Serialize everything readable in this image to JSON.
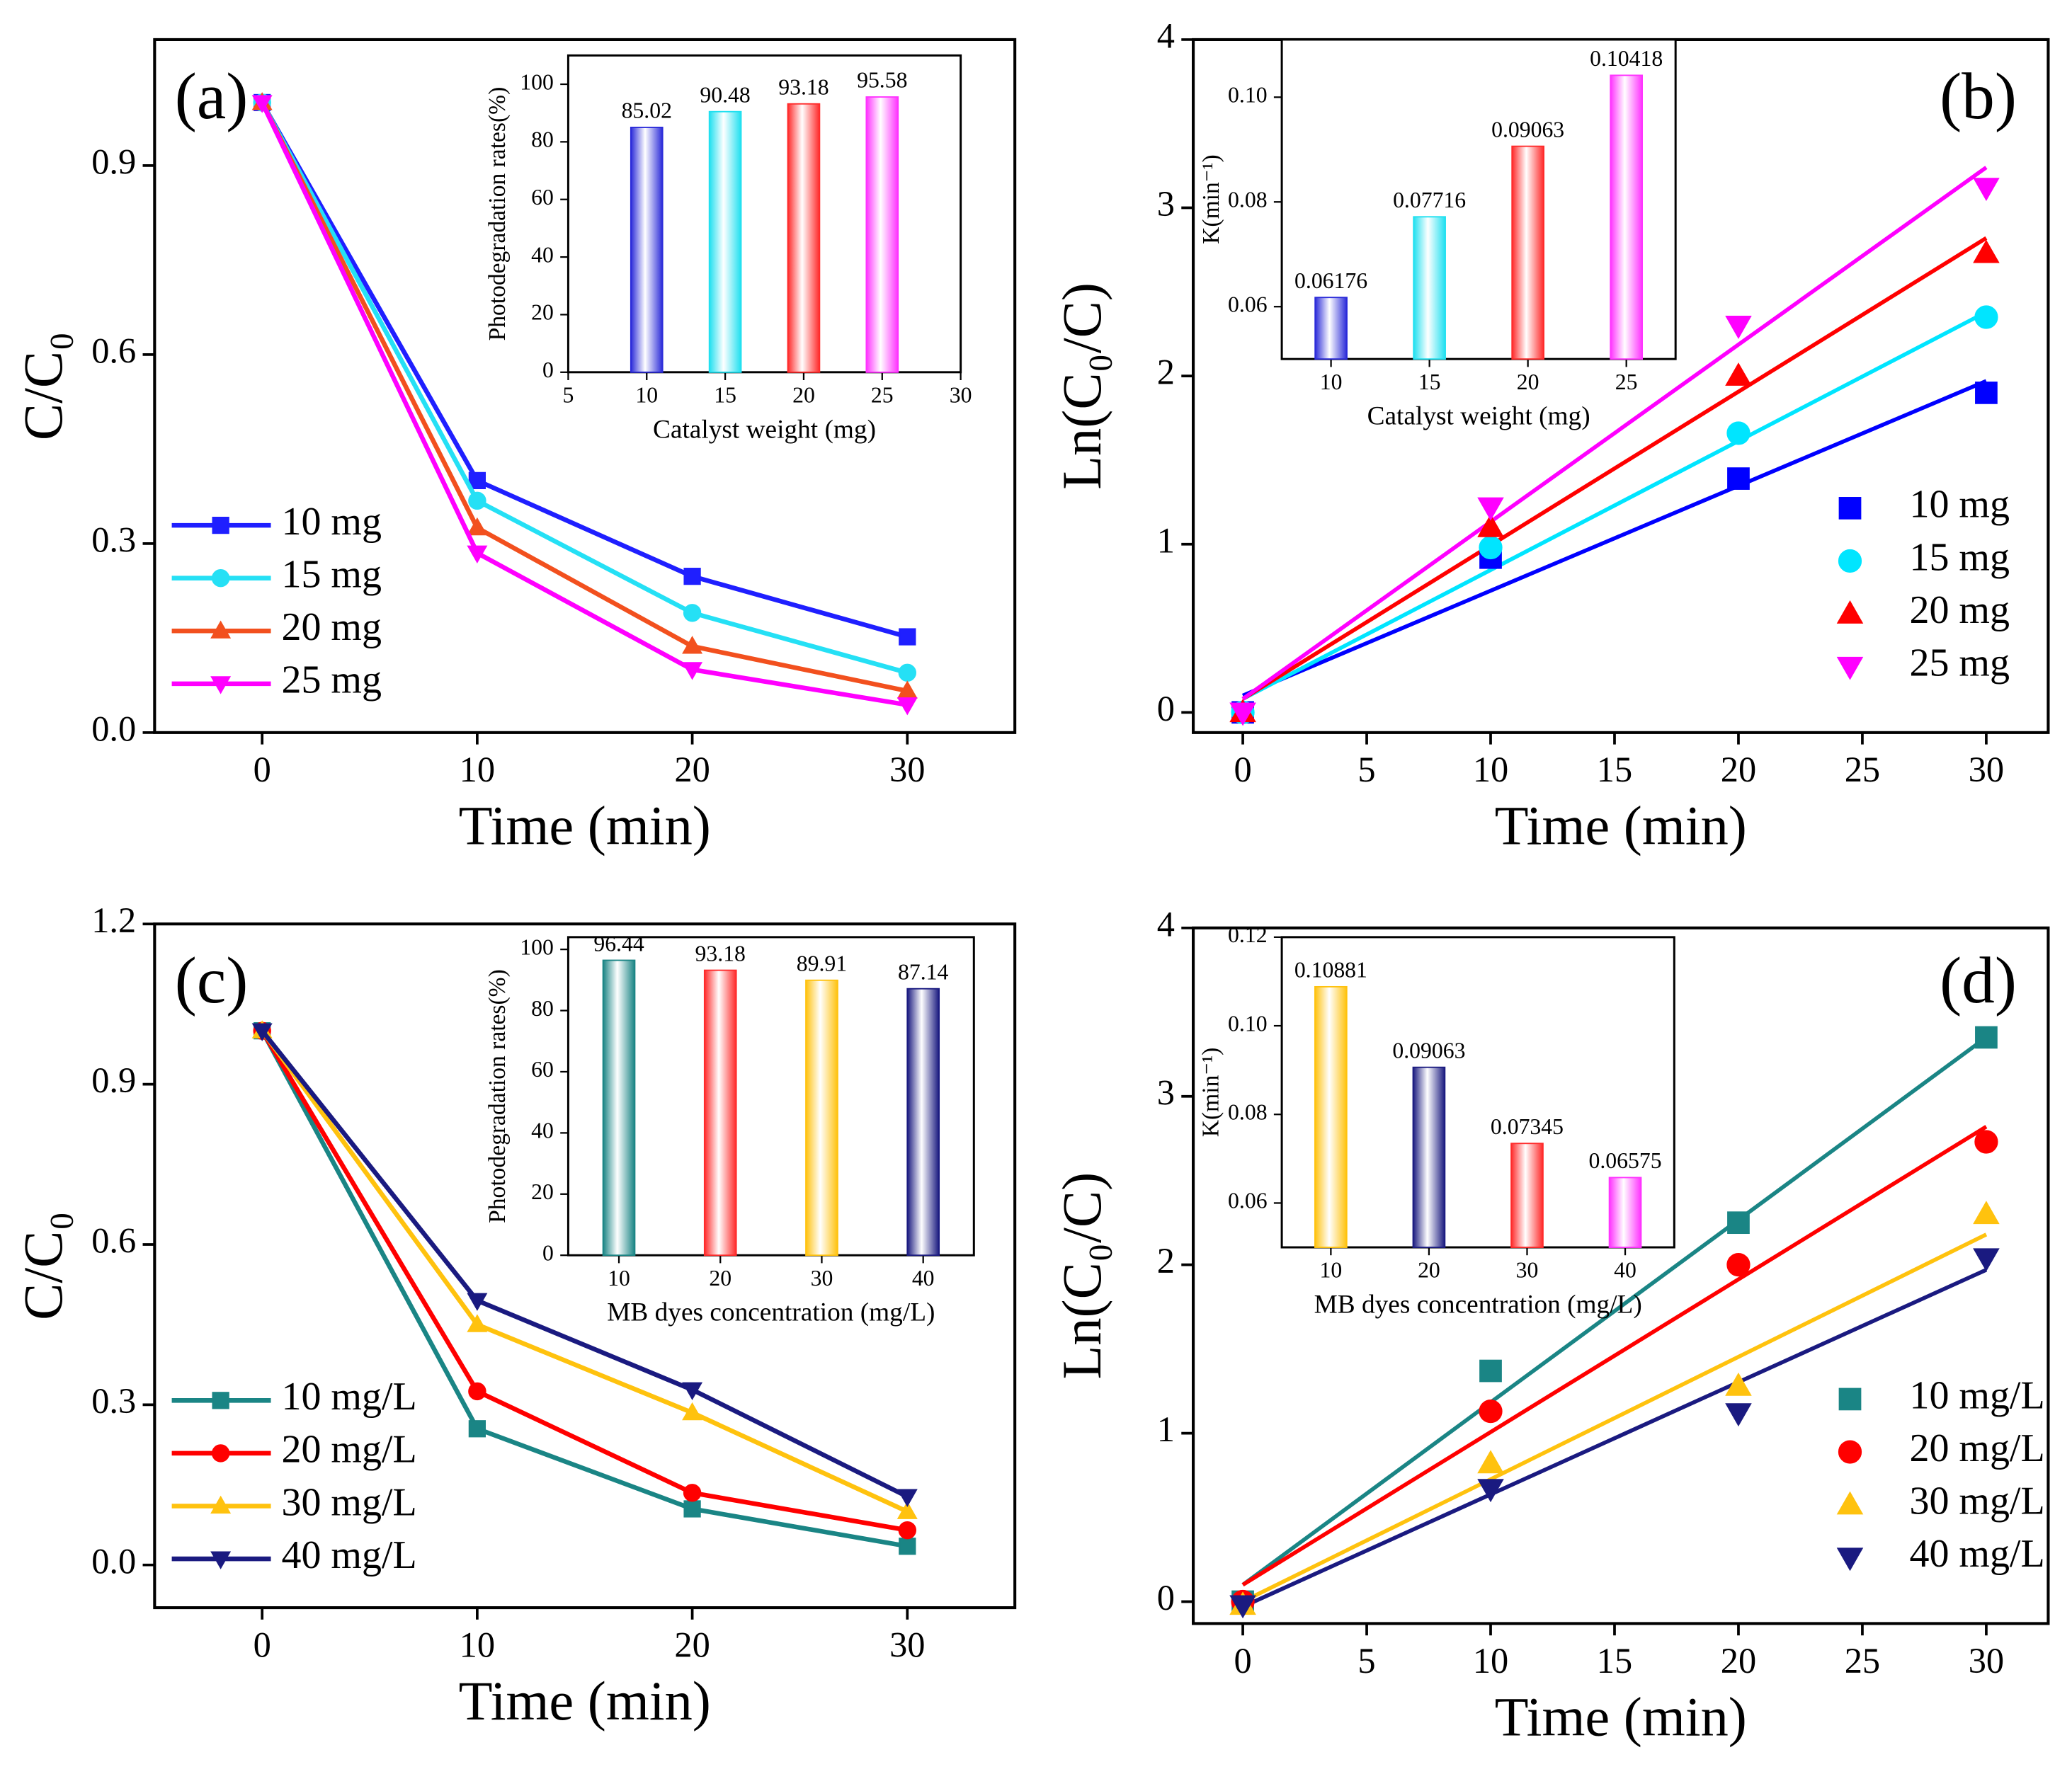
{
  "chart_data": [
    {
      "type": "line",
      "panel_label": "(a)",
      "x_label": "Time (min)",
      "y_label": "C/C₀",
      "x": [
        0,
        10,
        20,
        30
      ],
      "xlim": [
        -5,
        35
      ],
      "xticks": [
        0,
        10,
        20,
        30
      ],
      "ylim": [
        0,
        1.1
      ],
      "yticks": [
        {
          "value": 0,
          "label": "0.0"
        },
        0.3,
        0.6,
        0.9
      ],
      "legend": "lower left",
      "series": [
        {
          "name": "10 mg",
          "color": "#1f1fff",
          "marker": "square",
          "values": [
            1,
            0.4,
            0.248,
            0.152
          ]
        },
        {
          "name": "15 mg",
          "color": "#25e0f5",
          "marker": "circle",
          "values": [
            1,
            0.368,
            0.19,
            0.095
          ]
        },
        {
          "name": "20 mg",
          "color": "#f2501e",
          "marker": "triangle-up",
          "values": [
            1,
            0.325,
            0.137,
            0.066
          ]
        },
        {
          "name": "25 mg",
          "color": "#ff00ff",
          "marker": "triangle-down",
          "values": [
            1,
            0.285,
            0.1,
            0.044
          ]
        }
      ]
    },
    {
      "type": "bar",
      "x_label": "Catalyst weight (mg)",
      "y_label": "Photodegradation rates(%)",
      "x": [
        10,
        15,
        20,
        25
      ],
      "xlim": [
        5,
        30
      ],
      "xticks": [
        5,
        10,
        15,
        20,
        25,
        30
      ],
      "values": [
        85.02,
        90.48,
        93.18,
        95.58
      ],
      "colors": [
        "#2b2bd9",
        "#20e0f0",
        "#ff2a2a",
        "#ff33ff"
      ],
      "ylim": [
        0,
        110
      ],
      "yticks": [
        0,
        20,
        40,
        60,
        80,
        100
      ]
    },
    {
      "type": "scatter",
      "panel_label": "(b)",
      "x_label": "Time (min)",
      "y_label": "Ln(C₀/C)",
      "x": [
        0,
        10,
        20,
        30
      ],
      "xlim": [
        -2,
        32.5
      ],
      "xticks": [
        0,
        5,
        10,
        15,
        20,
        25,
        30
      ],
      "ylim": [
        -0.12,
        4
      ],
      "yticks": [
        0,
        1,
        2,
        3,
        4
      ],
      "legend": "lower right",
      "series": [
        {
          "name": "10 mg",
          "color": "#0000ff",
          "marker": "square",
          "values": [
            0,
            0.92,
            1.39,
            1.9
          ],
          "fit": [
            0.1,
            1.97
          ]
        },
        {
          "name": "15 mg",
          "color": "#00e5ff",
          "marker": "circle",
          "values": [
            0,
            0.98,
            1.66,
            2.35
          ],
          "fit": [
            0.08,
            2.38
          ]
        },
        {
          "name": "20 mg",
          "color": "#ff0000",
          "marker": "triangle-up",
          "values": [
            0,
            1.1,
            2.0,
            2.73
          ],
          "fit": [
            0.08,
            2.82
          ]
        },
        {
          "name": "25 mg",
          "color": "#ff00ff",
          "marker": "triangle-down",
          "values": [
            0,
            1.22,
            2.3,
            3.12
          ],
          "fit": [
            0.08,
            3.24
          ]
        }
      ]
    },
    {
      "type": "bar",
      "x_label": "Catalyst weight (mg)",
      "y_label": "K(min⁻¹)",
      "categories": [
        "10",
        "15",
        "20",
        "25"
      ],
      "values": [
        0.06176,
        0.07716,
        0.09063,
        0.10418
      ],
      "colors": [
        "#2b2bd9",
        "#20e0f0",
        "#ff2a2a",
        "#ff33ff"
      ],
      "ylim": [
        0.05,
        0.111
      ],
      "yticks": [
        0.06,
        0.08,
        {
          "value": 0.1,
          "label": "0.10"
        }
      ]
    },
    {
      "type": "line",
      "panel_label": "(c)",
      "x_label": "Time (min)",
      "y_label": "C/C₀",
      "x": [
        0,
        10,
        20,
        30
      ],
      "xlim": [
        -5,
        35
      ],
      "xticks": [
        0,
        10,
        20,
        30
      ],
      "ylim": [
        -0.08,
        1.2
      ],
      "yticks": [
        {
          "value": 0,
          "label": "0.0"
        },
        0.3,
        0.6,
        0.9,
        1.2
      ],
      "legend": "lower left",
      "series": [
        {
          "name": "10 mg/L",
          "color": "#1a8585",
          "marker": "square",
          "values": [
            1,
            0.255,
            0.105,
            0.035
          ]
        },
        {
          "name": "20 mg/L",
          "color": "#ff0000",
          "marker": "circle",
          "values": [
            1,
            0.325,
            0.135,
            0.065
          ]
        },
        {
          "name": "30 mg/L",
          "color": "#ffc20e",
          "marker": "triangle-up",
          "values": [
            1,
            0.45,
            0.285,
            0.1
          ]
        },
        {
          "name": "40 mg/L",
          "color": "#1a1a80",
          "marker": "triangle-down",
          "values": [
            1,
            0.495,
            0.328,
            0.128
          ]
        }
      ]
    },
    {
      "type": "bar",
      "x_label": "MB dyes concentration (mg/L)",
      "y_label": "Photodegradation rates(%)",
      "categories": [
        "10",
        "20",
        "30",
        "40"
      ],
      "values": [
        96.44,
        93.18,
        89.91,
        87.14
      ],
      "colors": [
        "#1a8585",
        "#ff2a2a",
        "#ffc20e",
        "#1a1a80"
      ],
      "ylim": [
        0,
        104
      ],
      "yticks": [
        0,
        20,
        40,
        60,
        80,
        100
      ]
    },
    {
      "type": "scatter",
      "panel_label": "(d)",
      "x_label": "Time (min)",
      "y_label": "Ln(C₀/C)",
      "x": [
        0,
        10,
        20,
        30
      ],
      "xlim": [
        -2,
        32.5
      ],
      "xticks": [
        0,
        5,
        10,
        15,
        20,
        25,
        30
      ],
      "ylim": [
        -0.13,
        4
      ],
      "yticks": [
        0,
        1,
        2,
        3,
        4
      ],
      "legend": "lower right",
      "series": [
        {
          "name": "10 mg/L",
          "color": "#1a8585",
          "marker": "square",
          "values": [
            0,
            1.37,
            2.25,
            3.35
          ],
          "fit": [
            0.1,
            3.35
          ]
        },
        {
          "name": "20 mg/L",
          "color": "#ff0000",
          "marker": "circle",
          "values": [
            0,
            1.13,
            2.0,
            2.73
          ],
          "fit": [
            0.1,
            2.82
          ]
        },
        {
          "name": "30 mg/L",
          "color": "#ffc20e",
          "marker": "triangle-up",
          "values": [
            -0.02,
            0.82,
            1.28,
            2.3
          ],
          "fit": [
            0,
            2.18
          ]
        },
        {
          "name": "40 mg/L",
          "color": "#1a1a80",
          "marker": "triangle-down",
          "values": [
            -0.02,
            0.67,
            1.12,
            2.04
          ],
          "fit": [
            -0.03,
            1.97
          ]
        }
      ]
    },
    {
      "type": "bar",
      "x_label": "MB dyes concentration (mg/L)",
      "y_label": "K(min⁻¹)",
      "categories": [
        "10",
        "20",
        "30",
        "40"
      ],
      "values": [
        0.10881,
        0.09063,
        0.07345,
        0.06575
      ],
      "colors": [
        "#ffc20e",
        "#1a1a80",
        "#ff2a2a",
        "#ff33ff"
      ],
      "ylim": [
        0.05,
        0.12
      ],
      "yticks": [
        0.06,
        0.08,
        {
          "value": 0.1,
          "label": "0.10"
        },
        0.12
      ]
    }
  ]
}
